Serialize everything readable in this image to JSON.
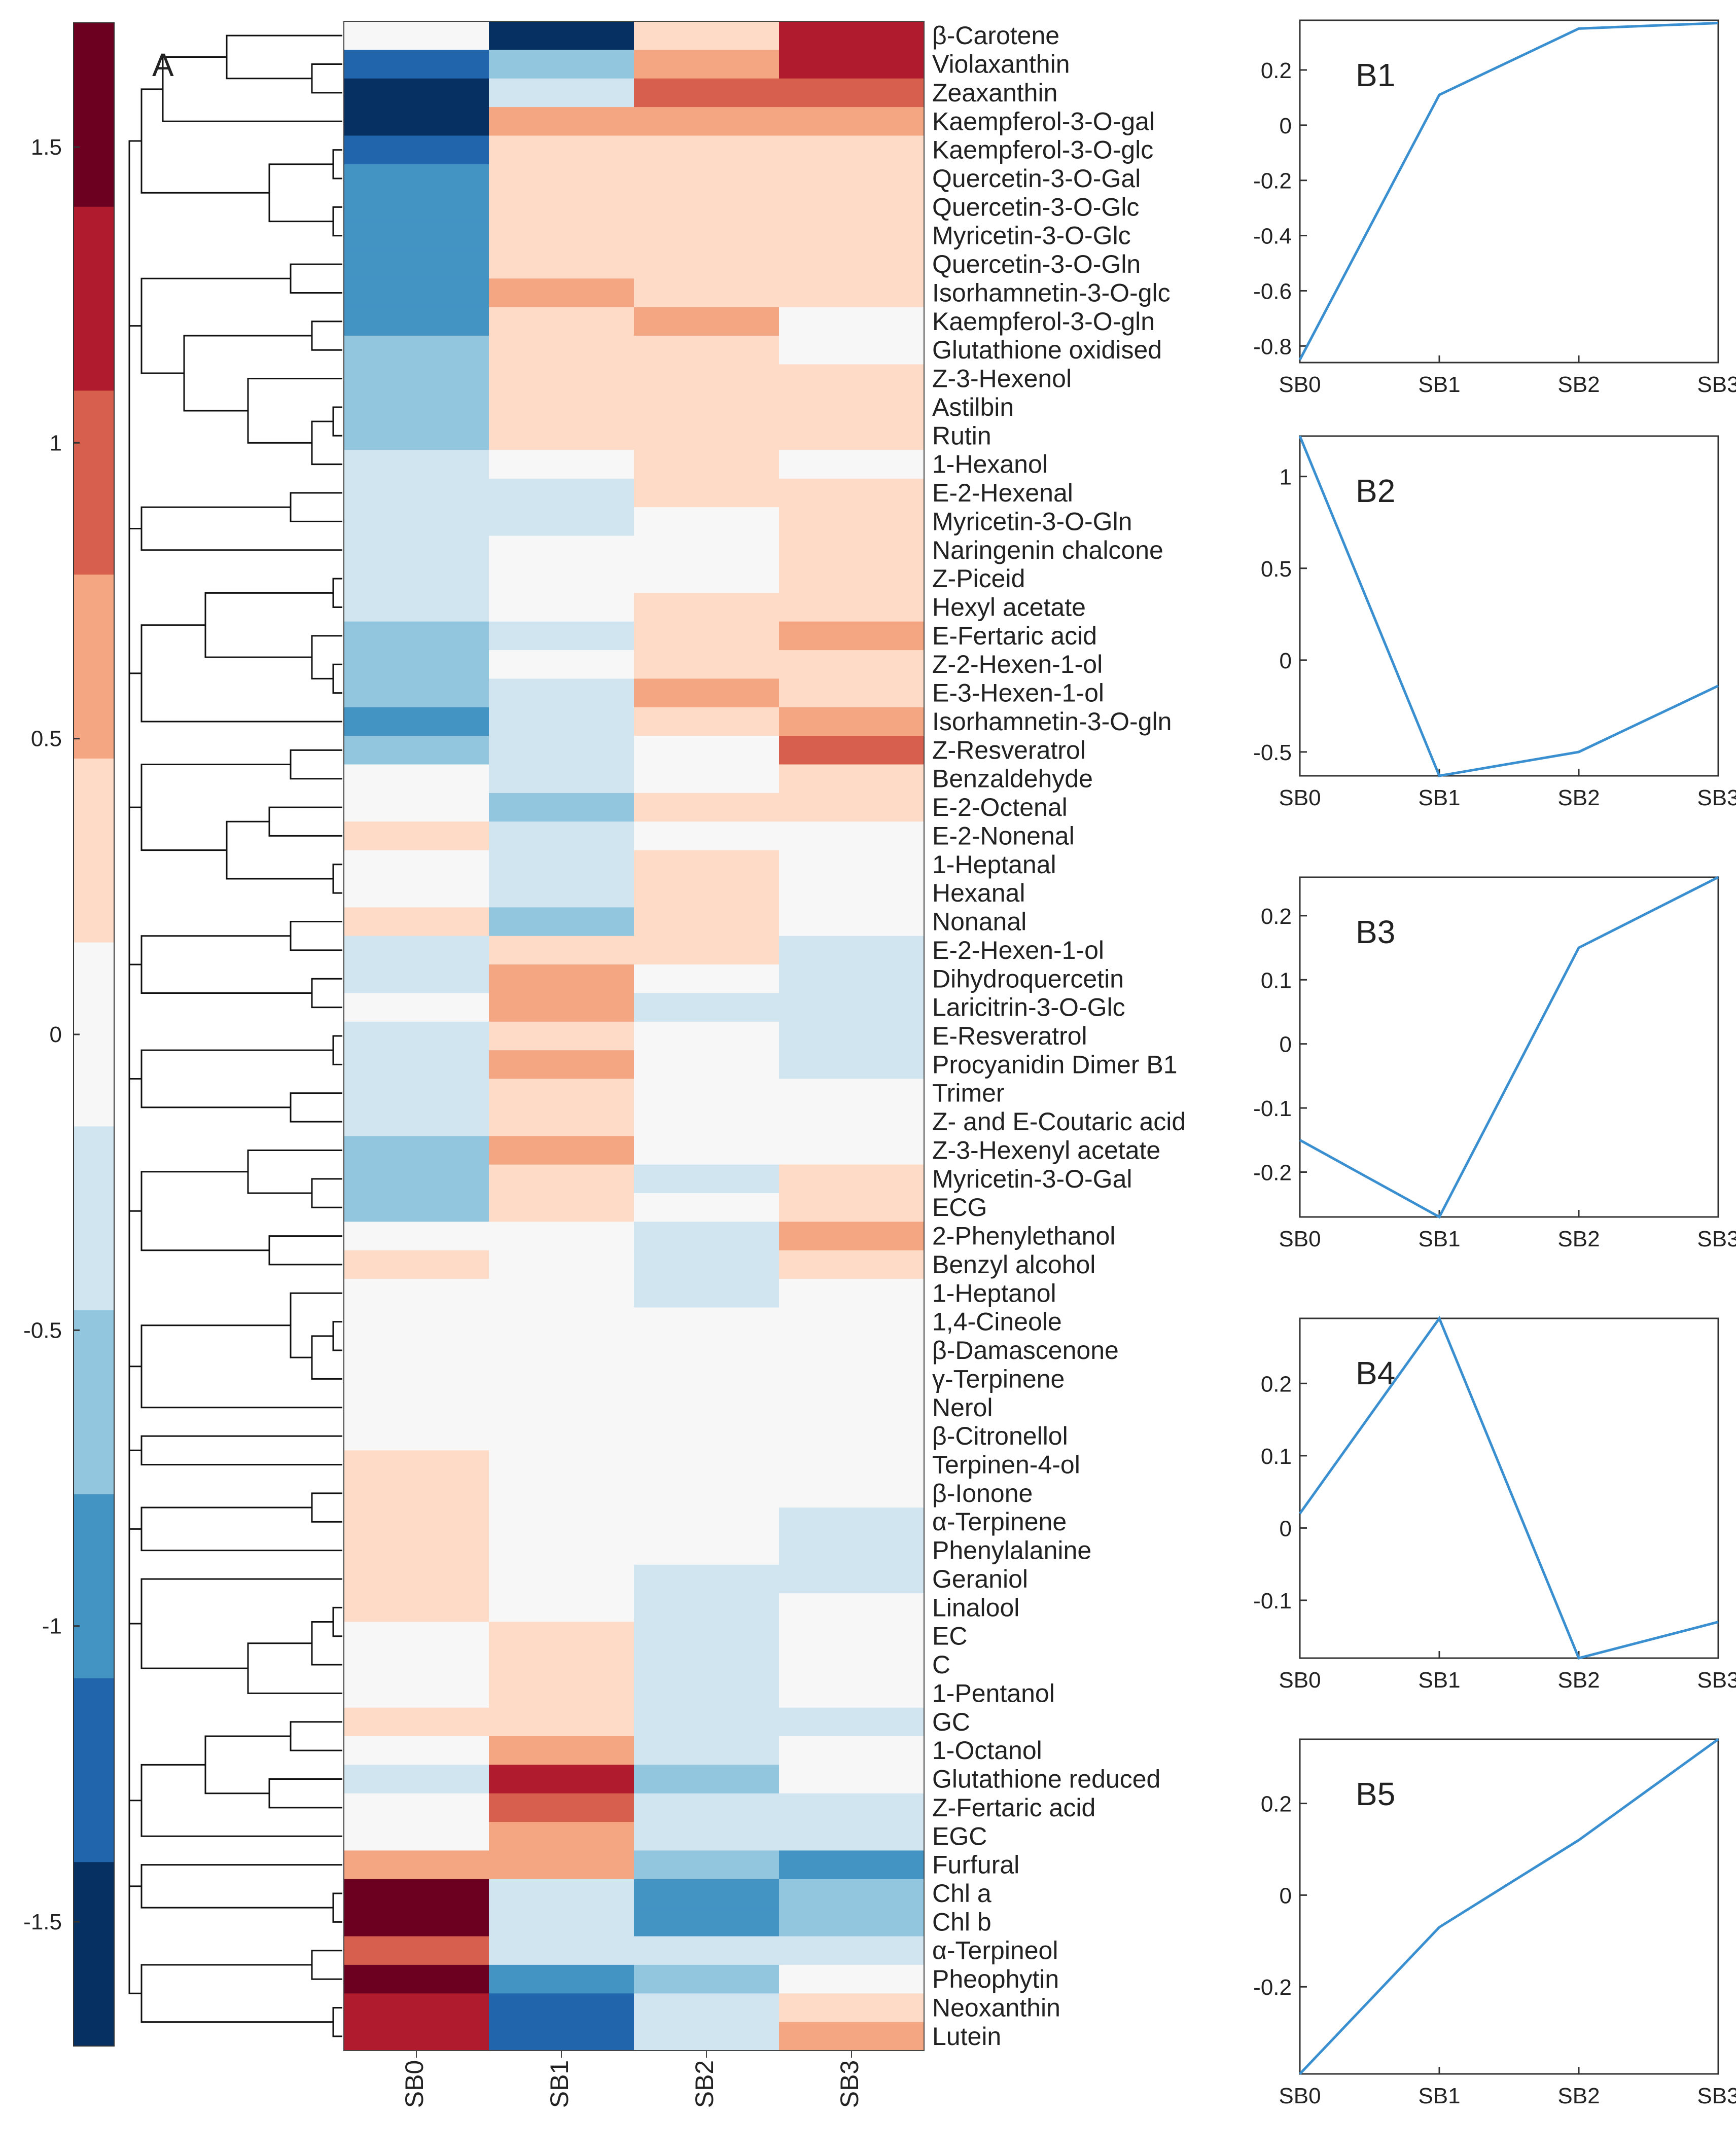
{
  "chart_data": [
    {
      "type": "heatmap",
      "panel_label": "A",
      "columns": [
        "SB0",
        "SB1",
        "SB2",
        "SB3"
      ],
      "colorbar": {
        "range": [
          -1.71,
          1.71
        ],
        "ticks": [
          1.5,
          1,
          0.5,
          0,
          -0.5,
          -1,
          -1.5
        ],
        "tick_labels": [
          "1.5",
          "1",
          "0.5",
          "0",
          "-0.5",
          "-1",
          "-1.5"
        ],
        "colors": [
          "#6b0020",
          "#b01c2e",
          "#d6604d",
          "#f4a582",
          "#fddbc7",
          "#f7f7f7",
          "#d1e5f0",
          "#92c5de",
          "#4393c3",
          "#2166ac",
          "#053061"
        ]
      },
      "rows": [
        "β-Carotene",
        "Violaxanthin",
        "Zeaxanthin",
        "Kaempferol-3-O-gal",
        "Kaempferol-3-O-glc",
        "Quercetin-3-O-Gal",
        "Quercetin-3-O-Glc",
        "Myricetin-3-O-Glc",
        "Quercetin-3-O-Gln",
        "Isorhamnetin-3-O-glc",
        "Kaempferol-3-O-gln",
        "Glutathione oxidised",
        "Z-3-Hexenol",
        "Astilbin",
        "Rutin",
        "1-Hexanol",
        "E-2-Hexenal",
        "Myricetin-3-O-Gln",
        "Naringenin chalcone",
        "Z-Piceid",
        "Hexyl acetate",
        "E-Fertaric acid",
        "Z-2-Hexen-1-ol",
        "E-3-Hexen-1-ol",
        "Isorhamnetin-3-O-gln",
        "Z-Resveratrol",
        "Benzaldehyde",
        "E-2-Octenal",
        "E-2-Nonenal",
        "1-Heptanal",
        "Hexanal",
        "Nonanal",
        "E-2-Hexen-1-ol",
        "Dihydroquercetin",
        "Laricitrin-3-O-Glc",
        "E-Resveratrol",
        "Procyanidin Dimer B1",
        "Trimer",
        "Z- and E-Coutaric acid",
        "Z-3-Hexenyl acetate",
        "Myricetin-3-O-Gal",
        "ECG",
        "2-Phenylethanol",
        "Benzyl alcohol",
        "1-Heptanol",
        "1,4-Cineole",
        "β-Damascenone",
        "γ-Terpinene",
        "Nerol",
        "β-Citronellol",
        "Terpinen-4-ol",
        "β-Ionone",
        "α-Terpinene",
        "Phenylalanine",
        "Geraniol",
        "Linalool",
        "EC",
        "C",
        "1-Pentanol",
        "GC",
        "1-Octanol",
        "Glutathione reduced",
        "Z-Fertaric acid",
        "EGC",
        "Furfural",
        "Chl a",
        "Chl b",
        "α-Terpineol",
        "Pheophytin",
        "Neoxanthin",
        "Lutein"
      ],
      "values": [
        [
          0,
          -1.6,
          0.4,
          1.2
        ],
        [
          -1.1,
          -0.6,
          0.6,
          1.2
        ],
        [
          -1.6,
          -0.3,
          0.9,
          0.9
        ],
        [
          -1.6,
          0.6,
          0.6,
          0.6
        ],
        [
          -1.1,
          0.3,
          0.3,
          0.3
        ],
        [
          -0.9,
          0.3,
          0.3,
          0.3
        ],
        [
          -0.9,
          0.3,
          0.3,
          0.3
        ],
        [
          -0.9,
          0.3,
          0.3,
          0.3
        ],
        [
          -0.9,
          0.3,
          0.3,
          0.3
        ],
        [
          -0.9,
          0.6,
          0.3,
          0.3
        ],
        [
          -0.9,
          0.3,
          0.6,
          0
        ],
        [
          -0.6,
          0.3,
          0.3,
          0
        ],
        [
          -0.6,
          0.3,
          0.3,
          0.3
        ],
        [
          -0.6,
          0.3,
          0.3,
          0.3
        ],
        [
          -0.6,
          0.3,
          0.3,
          0.3
        ],
        [
          -0.3,
          0,
          0.3,
          0
        ],
        [
          -0.3,
          -0.3,
          0.3,
          0.3
        ],
        [
          -0.3,
          -0.3,
          0,
          0.3
        ],
        [
          -0.3,
          0,
          0,
          0.3
        ],
        [
          -0.3,
          0,
          0,
          0.3
        ],
        [
          -0.3,
          0,
          0.3,
          0.3
        ],
        [
          -0.6,
          -0.3,
          0.3,
          0.6
        ],
        [
          -0.6,
          0,
          0.3,
          0.3
        ],
        [
          -0.6,
          -0.3,
          0.6,
          0.3
        ],
        [
          -0.9,
          -0.3,
          0.3,
          0.6
        ],
        [
          -0.6,
          -0.3,
          0,
          0.9
        ],
        [
          0,
          -0.3,
          0,
          0.3
        ],
        [
          0,
          -0.6,
          0.3,
          0.3
        ],
        [
          0.3,
          -0.3,
          0,
          0
        ],
        [
          0,
          -0.3,
          0.3,
          0
        ],
        [
          0,
          -0.3,
          0.3,
          0
        ],
        [
          0.3,
          -0.6,
          0.3,
          0
        ],
        [
          -0.3,
          0.3,
          0.3,
          -0.3
        ],
        [
          -0.3,
          0.6,
          0,
          -0.3
        ],
        [
          0,
          0.6,
          -0.3,
          -0.3
        ],
        [
          -0.3,
          0.3,
          0,
          -0.3
        ],
        [
          -0.3,
          0.6,
          0,
          -0.3
        ],
        [
          -0.3,
          0.3,
          0,
          0
        ],
        [
          -0.3,
          0.3,
          0,
          0
        ],
        [
          -0.6,
          0.6,
          0,
          0
        ],
        [
          -0.6,
          0.3,
          -0.3,
          0.3
        ],
        [
          -0.6,
          0.3,
          0,
          0.3
        ],
        [
          0,
          0,
          -0.3,
          0.6
        ],
        [
          0.3,
          0,
          -0.3,
          0.3
        ],
        [
          0,
          0,
          -0.3,
          0
        ],
        [
          0,
          0,
          0,
          0
        ],
        [
          0,
          0,
          0,
          0
        ],
        [
          0,
          0,
          0,
          0
        ],
        [
          0,
          0,
          0,
          0
        ],
        [
          0,
          0,
          0,
          0
        ],
        [
          0.3,
          0,
          0,
          0
        ],
        [
          0.3,
          0,
          0,
          0
        ],
        [
          0.3,
          0,
          0,
          -0.3
        ],
        [
          0.3,
          0,
          0,
          -0.3
        ],
        [
          0.3,
          0,
          -0.3,
          -0.3
        ],
        [
          0.3,
          0,
          -0.3,
          0
        ],
        [
          0,
          0.3,
          -0.3,
          0
        ],
        [
          0,
          0.3,
          -0.3,
          0
        ],
        [
          0,
          0.3,
          -0.3,
          0
        ],
        [
          0.3,
          0.3,
          -0.3,
          -0.3
        ],
        [
          0,
          0.6,
          -0.3,
          0
        ],
        [
          -0.3,
          1.2,
          -0.6,
          0
        ],
        [
          0,
          0.9,
          -0.3,
          -0.3
        ],
        [
          0,
          0.6,
          -0.3,
          -0.3
        ],
        [
          0.6,
          0.6,
          -0.6,
          -0.9
        ],
        [
          1.6,
          -0.3,
          -0.9,
          -0.6
        ],
        [
          1.6,
          -0.3,
          -0.9,
          -0.6
        ],
        [
          0.9,
          -0.3,
          -0.3,
          -0.3
        ],
        [
          1.6,
          -0.9,
          -0.6,
          0
        ],
        [
          1.2,
          -1.1,
          -0.3,
          0.3
        ],
        [
          1.2,
          -1.1,
          -0.3,
          0.6
        ]
      ]
    },
    {
      "type": "line",
      "panel_label": "B1",
      "x": [
        "SB0",
        "SB1",
        "SB2",
        "SB3"
      ],
      "y": [
        -0.85,
        0.11,
        0.35,
        0.37
      ],
      "ylim": [
        -0.86,
        0.38
      ],
      "yticks": [
        -0.8,
        -0.6,
        -0.4,
        -0.2,
        0,
        0.2
      ],
      "ytick_labels": [
        "-0.8",
        "-0.6",
        "-0.4",
        "-0.2",
        "0",
        "0.2"
      ]
    },
    {
      "type": "line",
      "panel_label": "B2",
      "x": [
        "SB0",
        "SB1",
        "SB2",
        "SB3"
      ],
      "y": [
        1.22,
        -0.63,
        -0.5,
        -0.14
      ],
      "ylim": [
        -0.63,
        1.22
      ],
      "yticks": [
        -0.5,
        0,
        0.5,
        1
      ],
      "ytick_labels": [
        "-0.5",
        "0",
        "0.5",
        "1"
      ]
    },
    {
      "type": "line",
      "panel_label": "B3",
      "x": [
        "SB0",
        "SB1",
        "SB2",
        "SB3"
      ],
      "y": [
        -0.15,
        -0.27,
        0.15,
        0.26
      ],
      "ylim": [
        -0.27,
        0.26
      ],
      "yticks": [
        -0.2,
        -0.1,
        0,
        0.1,
        0.2
      ],
      "ytick_labels": [
        "-0.2",
        "-0.1",
        "0",
        "0.1",
        "0.2"
      ]
    },
    {
      "type": "line",
      "panel_label": "B4",
      "x": [
        "SB0",
        "SB1",
        "SB2",
        "SB3"
      ],
      "y": [
        0.02,
        0.29,
        -0.18,
        -0.13
      ],
      "ylim": [
        -0.18,
        0.29
      ],
      "yticks": [
        -0.1,
        0,
        0.1,
        0.2
      ],
      "ytick_labels": [
        "-0.1",
        "0",
        "0.1",
        "0.2"
      ]
    },
    {
      "type": "line",
      "panel_label": "B5",
      "x": [
        "SB0",
        "SB1",
        "SB2",
        "SB3"
      ],
      "y": [
        -0.39,
        -0.07,
        0.12,
        0.34
      ],
      "ylim": [
        -0.39,
        0.34
      ],
      "yticks": [
        -0.2,
        0,
        0.2
      ],
      "ytick_labels": [
        "-0.2",
        "0",
        "0.2"
      ]
    }
  ]
}
